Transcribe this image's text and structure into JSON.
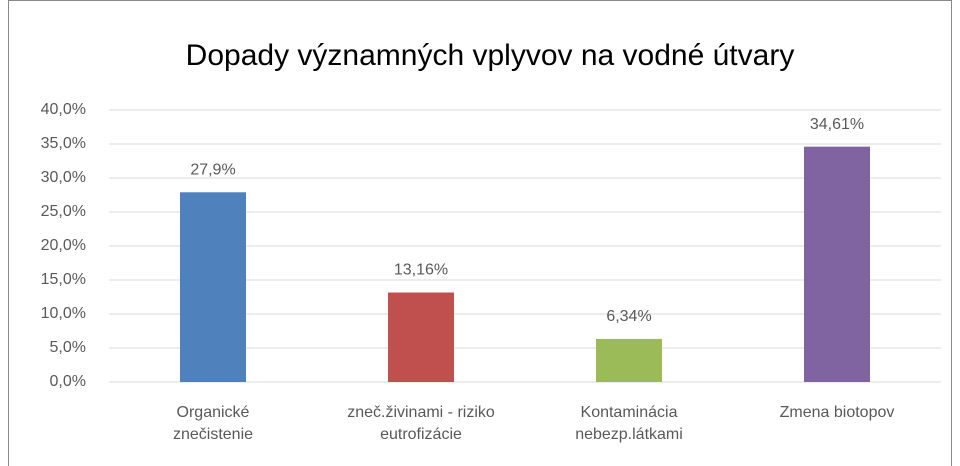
{
  "chart_data": {
    "type": "bar",
    "title": "Dopady významných vplyvov na vodné útvary",
    "categories": [
      "Organické\nznečistenie",
      "zneč.živinami - riziko\neutrofizácie",
      "Kontaminácia\nnebezp.látkami",
      "Zmena biotopov"
    ],
    "values": [
      27.9,
      13.16,
      6.34,
      34.61
    ],
    "value_labels": [
      "27,9%",
      "13,16%",
      "6,34%",
      "34,61%"
    ],
    "colors": [
      "#4f81bd",
      "#c0504d",
      "#9bbb59",
      "#8064a2"
    ],
    "ylim": [
      0,
      40
    ],
    "yticks": [
      {
        "value": 0,
        "label": "0,0%"
      },
      {
        "value": 5,
        "label": "5,0%"
      },
      {
        "value": 10,
        "label": "10,0%"
      },
      {
        "value": 15,
        "label": "15,0%"
      },
      {
        "value": 20,
        "label": "20,0%"
      },
      {
        "value": 25,
        "label": "25,0%"
      },
      {
        "value": 30,
        "label": "30,0%"
      },
      {
        "value": 35,
        "label": "35,0%"
      },
      {
        "value": 40,
        "label": "40,0%"
      }
    ],
    "grid": true
  }
}
